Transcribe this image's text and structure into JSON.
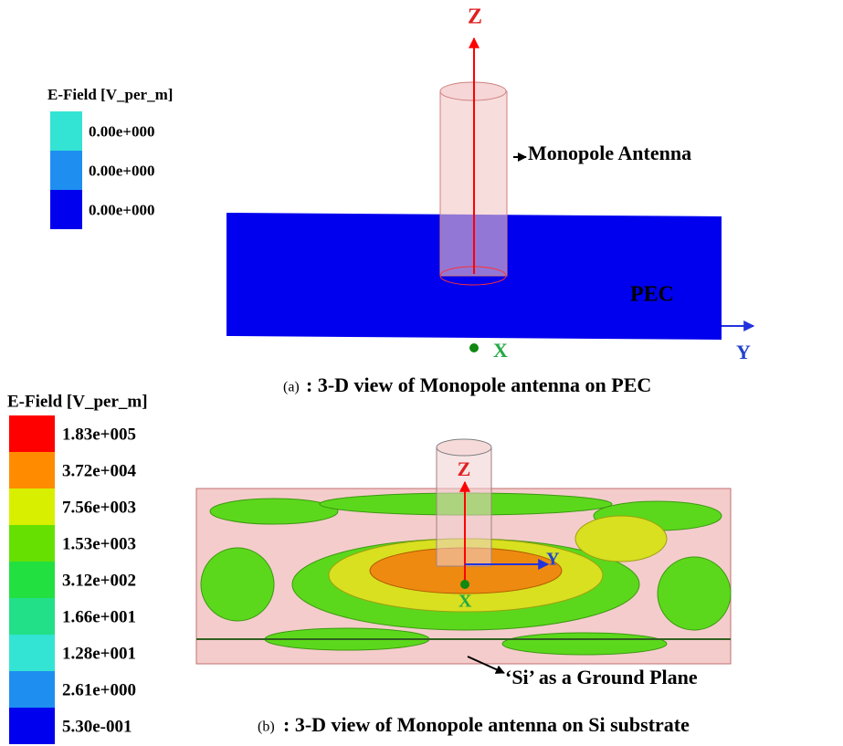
{
  "panels": [
    {
      "legend": {
        "title": "E-Field [V_per_m]",
        "entries": [
          {
            "label": "0.00e+000",
            "color": "#33e3d3"
          },
          {
            "label": "0.00e+000",
            "color": "#1e8ff0"
          },
          {
            "label": "0.00e+000",
            "color": "#0000ee"
          }
        ]
      },
      "axes": {
        "z": "Z",
        "x": "X",
        "y": "Y"
      },
      "annotations": {
        "antenna": "Monopole Antenna",
        "plane": "PEC"
      },
      "caption": {
        "tag": "(a)",
        "text": ": 3-D view of Monopole antenna on PEC"
      }
    },
    {
      "legend": {
        "title": "E-Field [V_per_m]",
        "entries": [
          {
            "label": "1.83e+005",
            "color": "#ff0000"
          },
          {
            "label": "3.72e+004",
            "color": "#ff8c00"
          },
          {
            "label": "7.56e+003",
            "color": "#d8f000"
          },
          {
            "label": "1.53e+003",
            "color": "#66e000"
          },
          {
            "label": "3.12e+002",
            "color": "#22e040"
          },
          {
            "label": "1.66e+001",
            "color": "#22e088"
          },
          {
            "label": "1.28e+001",
            "color": "#33e3d3"
          },
          {
            "label": "2.61e+000",
            "color": "#1e8ff0"
          },
          {
            "label": "5.30e-001",
            "color": "#0000ee"
          }
        ]
      },
      "axes": {
        "z": "Z",
        "x": "X",
        "y": "Y"
      },
      "annotations": {
        "plane": "‘Si’ as a Ground Plane"
      },
      "caption": {
        "tag": "(b)",
        "text": ": 3-D view of Monopole antenna on Si substrate"
      }
    }
  ]
}
